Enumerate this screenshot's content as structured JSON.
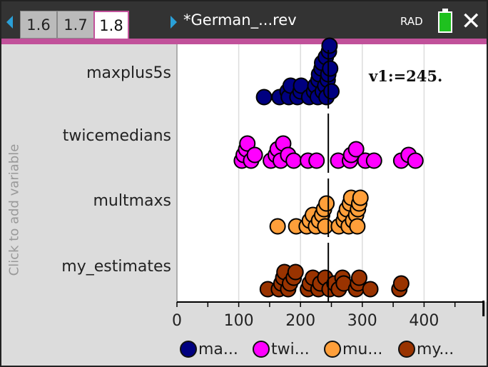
{
  "header": {
    "tabs": [
      "1.6",
      "1.7",
      "1.8"
    ],
    "active_tab": "1.8",
    "doc_title": "*German_...rev",
    "angle_mode": "RAD"
  },
  "left_panel": {
    "add_variable": "Click to add variable"
  },
  "legend": [
    "ma...",
    "twi...",
    "mu...",
    "my..."
  ],
  "chart_data": {
    "type": "scatter",
    "subtype": "dot plot",
    "xlim": [
      0,
      495
    ],
    "x_ticks": [
      0,
      100,
      200,
      300,
      400
    ],
    "grid": true,
    "legend_placement": "bottom",
    "reference_line": {
      "label": "v1:=245.",
      "value": 245
    },
    "series": [
      {
        "name": "maxplus5s",
        "color": "#000080",
        "values": [
          141,
          166,
          179,
          181,
          184,
          195,
          200,
          201,
          214,
          222,
          224,
          228,
          229,
          230,
          234,
          235,
          236,
          240,
          241,
          242,
          244,
          245,
          246,
          247,
          248,
          250
        ]
      },
      {
        "name": "twicemedians",
        "color": "#ff00ff",
        "values": [
          105,
          108,
          112,
          114,
          120,
          126,
          152,
          160,
          163,
          168,
          172,
          180,
          189,
          212,
          226,
          261,
          280,
          282,
          290,
          305,
          319,
          363,
          375,
          386
        ]
      },
      {
        "name": "multmaxs",
        "color": "#ff9f3a",
        "values": [
          163,
          193,
          210,
          215,
          220,
          225,
          230,
          235,
          238,
          240,
          242,
          262,
          270,
          272,
          275,
          278,
          280,
          282,
          285,
          290,
          292,
          293,
          295,
          297
        ]
      },
      {
        "name": "my_estimates",
        "color": "#993300",
        "values": [
          147,
          165,
          169,
          172,
          174,
          180,
          183,
          189,
          192,
          212,
          215,
          220,
          229,
          232,
          240,
          247,
          255,
          262,
          268,
          270,
          290,
          293,
          295,
          313,
          360,
          363
        ]
      }
    ]
  }
}
